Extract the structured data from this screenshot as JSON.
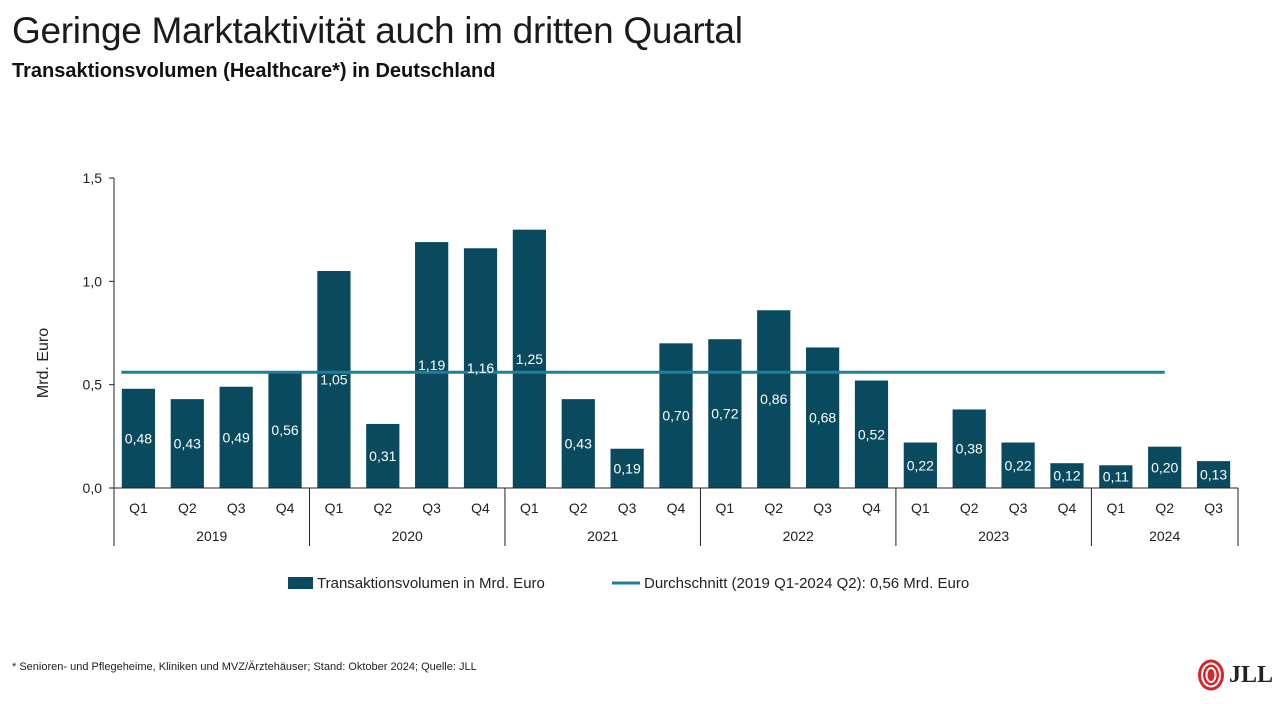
{
  "header": {
    "title": "Geringe Marktaktivität auch im dritten Quartal",
    "subtitle": "Transaktionsvolumen (Healthcare*) in Deutschland"
  },
  "footnote": "* Senioren- und Pflegeheime, Kliniken und MVZ/Ärztehäuser; Stand: Oktober 2024; Quelle: JLL",
  "logo": {
    "text": "JLL",
    "icon": "jll-flame-logo"
  },
  "colors": {
    "bar": "#0a4a5f",
    "average": "#1f7e9c",
    "axis": "#222222"
  },
  "chart_data": {
    "type": "bar",
    "ylabel": "Mrd. Euro",
    "ylim": [
      0,
      1.5
    ],
    "yticks": [
      "0,0",
      "0,5",
      "1,0",
      "1,5"
    ],
    "ytick_values": [
      0,
      0.5,
      1.0,
      1.5
    ],
    "grid": false,
    "legend_position": "bottom",
    "categories": [
      "Q1",
      "Q2",
      "Q3",
      "Q4",
      "Q1",
      "Q2",
      "Q3",
      "Q4",
      "Q1",
      "Q2",
      "Q3",
      "Q4",
      "Q1",
      "Q2",
      "Q3",
      "Q4",
      "Q1",
      "Q2",
      "Q3",
      "Q4",
      "Q1",
      "Q2",
      "Q3"
    ],
    "years": [
      {
        "label": "2019",
        "count": 4
      },
      {
        "label": "2020",
        "count": 4
      },
      {
        "label": "2021",
        "count": 4
      },
      {
        "label": "2022",
        "count": 4
      },
      {
        "label": "2023",
        "count": 4
      },
      {
        "label": "2024",
        "count": 3
      }
    ],
    "series": [
      {
        "name": "Transaktionsvolumen in Mrd. Euro",
        "type": "bar",
        "values": [
          0.48,
          0.43,
          0.49,
          0.56,
          1.05,
          0.31,
          1.19,
          1.16,
          1.25,
          0.43,
          0.19,
          0.7,
          0.72,
          0.86,
          0.68,
          0.52,
          0.22,
          0.38,
          0.22,
          0.12,
          0.11,
          0.2,
          0.13
        ],
        "labels": [
          "0,48",
          "0,43",
          "0,49",
          "0,56",
          "1,05",
          "0,31",
          "1,19",
          "1,16",
          "1,25",
          "0,43",
          "0,19",
          "0,70",
          "0,72",
          "0,86",
          "0,68",
          "0,52",
          "0,22",
          "0,38",
          "0,22",
          "0,12",
          "0,11",
          "0,20",
          "0,13"
        ]
      },
      {
        "name": "Durchschnitt (2019 Q1-2024 Q2): 0,56 Mrd. Euro",
        "type": "line",
        "value": 0.56
      }
    ]
  }
}
